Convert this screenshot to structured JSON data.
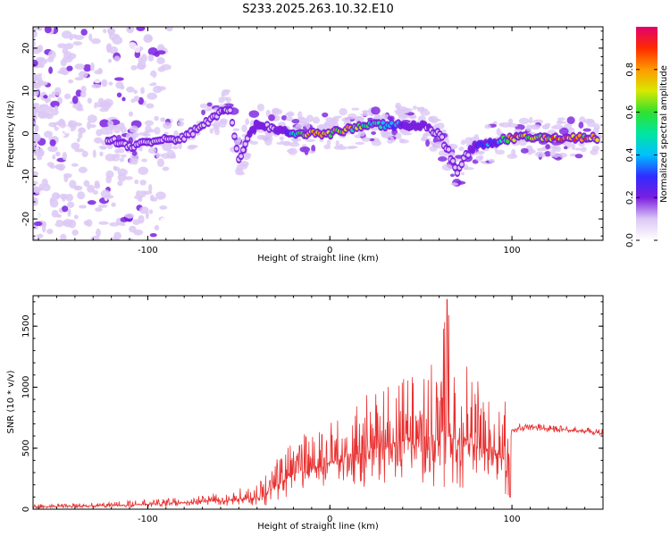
{
  "title": "S233.2025.263.10.32.E10",
  "colorbar": {
    "label": "Normalized spectral amplitude",
    "ticks": [
      "0.0",
      "0.2",
      "0.4",
      "0.6",
      "0.8"
    ],
    "tick_values": [
      0.0,
      0.2,
      0.4,
      0.6,
      0.8
    ],
    "range": [
      0,
      1
    ]
  },
  "chart_data": [
    {
      "type": "heatmap",
      "title": "S233.2025.263.10.32.E10",
      "xlabel": "Height of straight line (km)",
      "ylabel": "Frequency (Hz)",
      "xlim": [
        -163,
        150
      ],
      "ylim": [
        -25,
        25
      ],
      "x_ticks": [
        -100,
        0,
        100
      ],
      "x_tick_labels": [
        "-100",
        "0",
        "100"
      ],
      "y_ticks": [
        -20,
        -10,
        0,
        10,
        20
      ],
      "y_tick_labels": [
        "-20",
        "-10",
        "0",
        "10",
        "20"
      ],
      "ridge": {
        "description": "dominant frequency band",
        "x": [
          -120,
          -110,
          -100,
          -90,
          -80,
          -70,
          -60,
          -55,
          -50,
          -45,
          -40,
          -35,
          -30,
          -20,
          -10,
          0,
          10,
          20,
          30,
          40,
          50,
          60,
          65,
          70,
          75,
          80,
          90,
          100,
          110,
          120,
          130,
          148
        ],
        "freq": [
          -1.5,
          -3,
          -2,
          -1.5,
          -1,
          2,
          5,
          6,
          -6,
          -1,
          2,
          2,
          1,
          0,
          0,
          0,
          1,
          2,
          2,
          2,
          2,
          0,
          -4,
          -9,
          -5,
          -3,
          -2,
          -1,
          -1,
          -1,
          -1,
          -1
        ],
        "amplitude": [
          0.1,
          0.12,
          0.12,
          0.12,
          0.15,
          0.15,
          0.2,
          0.18,
          0.15,
          0.2,
          0.25,
          0.22,
          0.2,
          0.5,
          0.85,
          0.8,
          0.8,
          0.6,
          0.55,
          0.35,
          0.25,
          0.2,
          0.15,
          0.1,
          0.2,
          0.3,
          0.4,
          0.9,
          0.8,
          0.85,
          0.9,
          0.9
        ]
      },
      "colorbar_label": "Normalized spectral amplitude",
      "colorbar_range": [
        0,
        1
      ]
    },
    {
      "type": "line",
      "xlabel": "Height of straight line (km)",
      "ylabel": "SNR (10 * v/v)",
      "xlim": [
        -163,
        150
      ],
      "ylim": [
        0,
        1750
      ],
      "x_ticks": [
        -100,
        0,
        100
      ],
      "x_tick_labels": [
        "-100",
        "0",
        "100"
      ],
      "y_ticks": [
        0,
        500,
        1000,
        1500
      ],
      "y_tick_labels": [
        "0",
        "500",
        "1000",
        "1500"
      ],
      "series": [
        {
          "name": "SNR",
          "color": "#e83030",
          "x": [
            -163,
            -140,
            -120,
            -100,
            -80,
            -60,
            -50,
            -40,
            -35,
            -30,
            -25,
            -20,
            -10,
            0,
            10,
            20,
            30,
            40,
            50,
            60,
            64,
            70,
            80,
            90,
            95,
            98,
            100,
            110,
            120,
            130,
            140,
            150
          ],
          "baseline": [
            20,
            25,
            30,
            40,
            55,
            70,
            80,
            100,
            130,
            180,
            250,
            300,
            330,
            380,
            430,
            470,
            520,
            560,
            580,
            560,
            600,
            560,
            520,
            480,
            420,
            350,
            650,
            670,
            660,
            650,
            640,
            620
          ],
          "envelope": [
            40,
            50,
            60,
            80,
            100,
            140,
            170,
            220,
            300,
            380,
            550,
            600,
            650,
            700,
            820,
            950,
            1050,
            1100,
            1200,
            1250,
            1720,
            1300,
            1100,
            1000,
            900,
            1050,
            700,
            710,
            700,
            690,
            670,
            660
          ]
        }
      ]
    }
  ]
}
